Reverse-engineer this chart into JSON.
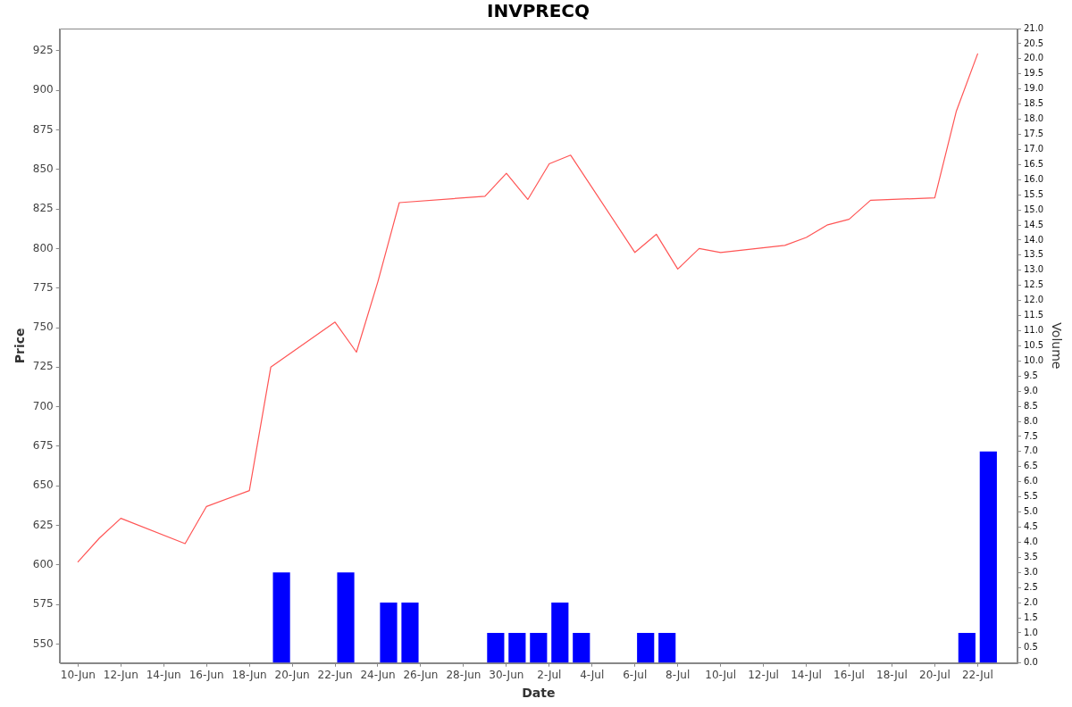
{
  "chart_data": {
    "type": "line",
    "title": "INVPRECQ",
    "xlabel": "Date",
    "ylabel": "Price",
    "y2label": "Volume",
    "xlim": [
      "--06-09T03:22",
      "--07-23T20:38"
    ],
    "xticks": [
      {
        "value": "--06-10",
        "label": "10-Jun"
      },
      {
        "value": "--06-12",
        "label": "12-Jun"
      },
      {
        "value": "--06-14",
        "label": "14-Jun"
      },
      {
        "value": "--06-16",
        "label": "16-Jun"
      },
      {
        "value": "--06-18",
        "label": "18-Jun"
      },
      {
        "value": "--06-20",
        "label": "20-Jun"
      },
      {
        "value": "--06-22",
        "label": "22-Jun"
      },
      {
        "value": "--06-24",
        "label": "24-Jun"
      },
      {
        "value": "--06-26",
        "label": "26-Jun"
      },
      {
        "value": "--06-28",
        "label": "28-Jun"
      },
      {
        "value": "--06-30",
        "label": "30-Jun"
      },
      {
        "value": "--07-02",
        "label": "2-Jul"
      },
      {
        "value": "--07-04",
        "label": "4-Jul"
      },
      {
        "value": "--07-06",
        "label": "6-Jul"
      },
      {
        "value": "--07-08",
        "label": "8-Jul"
      },
      {
        "value": "--07-10",
        "label": "10-Jul"
      },
      {
        "value": "--07-12",
        "label": "12-Jul"
      },
      {
        "value": "--07-14",
        "label": "14-Jul"
      },
      {
        "value": "--07-16",
        "label": "16-Jul"
      },
      {
        "value": "--07-18",
        "label": "18-Jul"
      },
      {
        "value": "--07-20",
        "label": "20-Jul"
      },
      {
        "value": "--07-22",
        "label": "22-Jul"
      }
    ],
    "ylim": [
      538,
      939
    ],
    "yticks": [
      550,
      575,
      600,
      625,
      650,
      675,
      700,
      725,
      750,
      775,
      800,
      825,
      850,
      875,
      900,
      925
    ],
    "y2lim": [
      0,
      21
    ],
    "y2ticks": [
      {
        "value": 0,
        "label": "0.0"
      },
      0.5,
      {
        "value": 1,
        "label": "1.0"
      },
      1.5,
      {
        "value": 2,
        "label": "2.0"
      },
      2.5,
      {
        "value": 3,
        "label": "3.0"
      },
      3.5,
      {
        "value": 4,
        "label": "4.0"
      },
      4.5,
      {
        "value": 5,
        "label": "5.0"
      },
      5.5,
      {
        "value": 6,
        "label": "6.0"
      },
      6.5,
      {
        "value": 7,
        "label": "7.0"
      },
      7.5,
      {
        "value": 8,
        "label": "8.0"
      },
      8.5,
      {
        "value": 9,
        "label": "9.0"
      },
      9.5,
      {
        "value": 10,
        "label": "10.0"
      },
      10.5,
      {
        "value": 11,
        "label": "11.0"
      },
      11.5,
      {
        "value": 12,
        "label": "12.0"
      },
      12.5,
      {
        "value": 13,
        "label": "13.0"
      },
      13.5,
      {
        "value": 14,
        "label": "14.0"
      },
      14.5,
      {
        "value": 15,
        "label": "15.0"
      },
      15.5,
      {
        "value": 16,
        "label": "16.0"
      },
      16.5,
      {
        "value": 17,
        "label": "17.0"
      },
      17.5,
      {
        "value": 18,
        "label": "18.0"
      },
      18.5,
      {
        "value": 19,
        "label": "19.0"
      },
      19.5,
      {
        "value": 20,
        "label": "20.0"
      },
      20.5,
      {
        "value": 21,
        "label": "21.0"
      }
    ],
    "series": [
      {
        "color": "#ff5555",
        "x": [
          "--06-10",
          "--06-11",
          "--06-12",
          "--06-15",
          "--06-16",
          "--06-18",
          "--06-19",
          "--06-22",
          "--06-23",
          "--06-24",
          "--06-25",
          "--06-29",
          "--06-30",
          "--07-01",
          "--07-02",
          "--07-03",
          "--07-06",
          "--07-07",
          "--07-08",
          "--07-09",
          "--07-10",
          "--07-13",
          "--07-14",
          "--07-15",
          "--07-16",
          "--07-17",
          "--07-20",
          "--07-21",
          "--07-22"
        ],
        "values": [
          602,
          617,
          629.5,
          613.5,
          637,
          647,
          725,
          753.5,
          734.5,
          779,
          829,
          833,
          847.5,
          831,
          853.5,
          859,
          797.5,
          809,
          787,
          800,
          797.5,
          802,
          807,
          815,
          818.5,
          830.5,
          832,
          886.5,
          923
        ]
      },
      {
        "type": "bar",
        "axis": "y2",
        "color": "#0000ff",
        "x": [
          "--06-19T12:00",
          "--06-22T12:00",
          "--06-24T12:00",
          "--06-25T12:00",
          "--06-29T12:00",
          "--06-30T12:00",
          "--07-01T12:00",
          "--07-02T12:00",
          "--07-03T12:00",
          "--07-06T12:00",
          "--07-07T12:00",
          "--07-21T12:00",
          "--07-22T12:00"
        ],
        "values": [
          3,
          3,
          2,
          2,
          1,
          1,
          1,
          2,
          1,
          1,
          1,
          1,
          7
        ]
      }
    ]
  }
}
